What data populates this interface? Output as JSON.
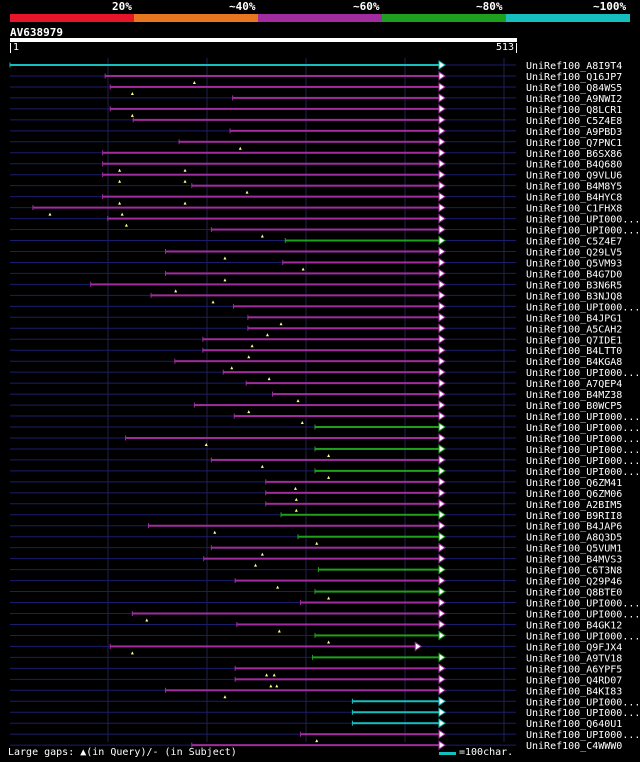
{
  "query": {
    "name": "AV638979",
    "length_start": "1",
    "length_end": "513"
  },
  "legend": {
    "labels": [
      "20%",
      "~40%",
      "~60%",
      "~80%",
      "~100%"
    ],
    "colors": [
      "#e8142a",
      "#e87620",
      "#a02ca0",
      "#1ea01e",
      "#17bebe"
    ]
  },
  "footer": {
    "gaps_note": "Large gaps: ▲(in Query)/- (in Subject)",
    "scale_note": "=100char."
  },
  "chart_data": {
    "type": "alignment",
    "query_length": 513,
    "hits": [
      {
        "label": "UniRef100_A8I9T4",
        "start": 1,
        "end": 513,
        "color": "cyan",
        "arrow": true,
        "marks": []
      },
      {
        "label": "UniRef100_Q16JP7",
        "start": 113,
        "end": 513,
        "color": "purple",
        "arrow": true,
        "marks": [
          218
        ]
      },
      {
        "label": "UniRef100_Q84WS5",
        "start": 119,
        "end": 513,
        "color": "purple",
        "arrow": true,
        "marks": [
          145
        ]
      },
      {
        "label": "UniRef100_A9NWI2",
        "start": 263,
        "end": 513,
        "color": "purple",
        "arrow": true,
        "marks": []
      },
      {
        "label": "UniRef100_Q8LCR1",
        "start": 119,
        "end": 513,
        "color": "purple",
        "arrow": true,
        "marks": [
          145
        ]
      },
      {
        "label": "UniRef100_C5Z4E8",
        "start": 146,
        "end": 513,
        "color": "purple",
        "arrow": true,
        "marks": []
      },
      {
        "label": "UniRef100_A9PBD3",
        "start": 260,
        "end": 513,
        "color": "purple",
        "arrow": true,
        "marks": []
      },
      {
        "label": "UniRef100_Q7PNC1",
        "start": 200,
        "end": 513,
        "color": "purple",
        "arrow": true,
        "marks": [
          272
        ]
      },
      {
        "label": "UniRef100_B6SX86",
        "start": 110,
        "end": 513,
        "color": "purple",
        "arrow": true,
        "marks": []
      },
      {
        "label": "UniRef100_B4Q680",
        "start": 110,
        "end": 513,
        "color": "purple",
        "arrow": true,
        "marks": [
          130,
          207
        ]
      },
      {
        "label": "UniRef100_Q9VLU6",
        "start": 110,
        "end": 513,
        "color": "purple",
        "arrow": true,
        "marks": [
          130,
          207
        ]
      },
      {
        "label": "UniRef100_B4M8Y5",
        "start": 215,
        "end": 513,
        "color": "purple",
        "arrow": true,
        "marks": [
          280
        ]
      },
      {
        "label": "UniRef100_B4HYC8",
        "start": 110,
        "end": 513,
        "color": "purple",
        "arrow": true,
        "marks": [
          130,
          207
        ]
      },
      {
        "label": "UniRef100_C1FHX8",
        "start": 28,
        "end": 513,
        "color": "purple",
        "arrow": true,
        "marks": [
          48,
          133
        ]
      },
      {
        "label": "UniRef100_UPI000...",
        "start": 116,
        "end": 513,
        "color": "purple",
        "arrow": true,
        "marks": [
          138
        ]
      },
      {
        "label": "UniRef100_UPI000...",
        "start": 238,
        "end": 513,
        "color": "purple",
        "arrow": true,
        "marks": [
          298
        ]
      },
      {
        "label": "UniRef100_C5Z4E7",
        "start": 325,
        "end": 513,
        "color": "green",
        "arrow": true,
        "marks": []
      },
      {
        "label": "UniRef100_Q29LV5",
        "start": 184,
        "end": 513,
        "color": "purple",
        "arrow": true,
        "marks": [
          254
        ]
      },
      {
        "label": "UniRef100_Q5VM93",
        "start": 322,
        "end": 513,
        "color": "purple",
        "arrow": true,
        "marks": [
          346
        ]
      },
      {
        "label": "UniRef100_B4G7D0",
        "start": 184,
        "end": 513,
        "color": "purple",
        "arrow": true,
        "marks": [
          254
        ]
      },
      {
        "label": "UniRef100_B3N6R5",
        "start": 96,
        "end": 513,
        "color": "purple",
        "arrow": true,
        "marks": [
          196
        ]
      },
      {
        "label": "UniRef100_B3NJQ8",
        "start": 167,
        "end": 513,
        "color": "purple",
        "arrow": true,
        "marks": [
          240
        ]
      },
      {
        "label": "UniRef100_UPI000...",
        "start": 264,
        "end": 513,
        "color": "purple",
        "arrow": true,
        "marks": []
      },
      {
        "label": "UniRef100_B4JPG1",
        "start": 281,
        "end": 513,
        "color": "purple",
        "arrow": true,
        "marks": [
          320
        ]
      },
      {
        "label": "UniRef100_A5CAH2",
        "start": 281,
        "end": 513,
        "color": "purple",
        "arrow": true,
        "marks": [
          304
        ]
      },
      {
        "label": "UniRef100_Q7IDE1",
        "start": 228,
        "end": 513,
        "color": "purple",
        "arrow": true,
        "marks": [
          286
        ]
      },
      {
        "label": "UniRef100_B4LTT0",
        "start": 228,
        "end": 513,
        "color": "purple",
        "arrow": true,
        "marks": [
          282
        ]
      },
      {
        "label": "UniRef100_B4KGA8",
        "start": 195,
        "end": 513,
        "color": "purple",
        "arrow": true,
        "marks": [
          262
        ]
      },
      {
        "label": "UniRef100_UPI000...",
        "start": 252,
        "end": 513,
        "color": "purple",
        "arrow": true,
        "marks": [
          306
        ]
      },
      {
        "label": "UniRef100_A7QEP4",
        "start": 279,
        "end": 513,
        "color": "purple",
        "arrow": true,
        "marks": []
      },
      {
        "label": "UniRef100_B4MZ38",
        "start": 310,
        "end": 513,
        "color": "purple",
        "arrow": true,
        "marks": [
          340
        ]
      },
      {
        "label": "UniRef100_B0WCP5",
        "start": 218,
        "end": 513,
        "color": "purple",
        "arrow": true,
        "marks": [
          282
        ]
      },
      {
        "label": "UniRef100_UPI000...",
        "start": 265,
        "end": 513,
        "color": "purple",
        "arrow": true,
        "marks": [
          345
        ]
      },
      {
        "label": "UniRef100_UPI000...",
        "start": 360,
        "end": 513,
        "color": "green",
        "arrow": true,
        "marks": []
      },
      {
        "label": "UniRef100_UPI000...",
        "start": 137,
        "end": 513,
        "color": "purple",
        "arrow": true,
        "marks": [
          232
        ]
      },
      {
        "label": "UniRef100_UPI000...",
        "start": 360,
        "end": 513,
        "color": "green",
        "arrow": true,
        "marks": [
          376
        ]
      },
      {
        "label": "UniRef100_UPI000...",
        "start": 238,
        "end": 513,
        "color": "purple",
        "arrow": true,
        "marks": [
          298
        ]
      },
      {
        "label": "UniRef100_UPI000...",
        "start": 360,
        "end": 513,
        "color": "green",
        "arrow": true,
        "marks": [
          376
        ]
      },
      {
        "label": "UniRef100_Q6ZM41",
        "start": 302,
        "end": 513,
        "color": "purple",
        "arrow": true,
        "marks": [
          337
        ]
      },
      {
        "label": "UniRef100_Q6ZM06",
        "start": 302,
        "end": 513,
        "color": "purple",
        "arrow": true,
        "marks": [
          338
        ]
      },
      {
        "label": "UniRef100_A2BIM5",
        "start": 302,
        "end": 513,
        "color": "purple",
        "arrow": true,
        "marks": [
          338
        ]
      },
      {
        "label": "UniRef100_B9RII8",
        "start": 320,
        "end": 513,
        "color": "green",
        "arrow": true,
        "marks": []
      },
      {
        "label": "UniRef100_B4JAP6",
        "start": 164,
        "end": 513,
        "color": "purple",
        "arrow": true,
        "marks": [
          242
        ]
      },
      {
        "label": "UniRef100_A8Q3D5",
        "start": 340,
        "end": 513,
        "color": "green",
        "arrow": true,
        "marks": [
          362
        ]
      },
      {
        "label": "UniRef100_Q5VUM1",
        "start": 238,
        "end": 513,
        "color": "purple",
        "arrow": true,
        "marks": [
          298
        ]
      },
      {
        "label": "UniRef100_B4MVS3",
        "start": 229,
        "end": 513,
        "color": "purple",
        "arrow": true,
        "marks": [
          290
        ]
      },
      {
        "label": "UniRef100_C6T3N8",
        "start": 364,
        "end": 513,
        "color": "green",
        "arrow": true,
        "marks": []
      },
      {
        "label": "UniRef100_Q29P46",
        "start": 266,
        "end": 513,
        "color": "purple",
        "arrow": true,
        "marks": [
          316
        ]
      },
      {
        "label": "UniRef100_Q8BTE0",
        "start": 360,
        "end": 513,
        "color": "green",
        "arrow": true,
        "marks": [
          376
        ]
      },
      {
        "label": "UniRef100_UPI000...",
        "start": 343,
        "end": 513,
        "color": "purple",
        "arrow": true,
        "marks": []
      },
      {
        "label": "UniRef100_UPI000...",
        "start": 145,
        "end": 513,
        "color": "purple",
        "arrow": true,
        "marks": [
          162
        ]
      },
      {
        "label": "UniRef100_B4GK12",
        "start": 268,
        "end": 513,
        "color": "purple",
        "arrow": true,
        "marks": [
          318
        ]
      },
      {
        "label": "UniRef100_UPI000...",
        "start": 360,
        "end": 513,
        "color": "green",
        "arrow": true,
        "marks": [
          376
        ]
      },
      {
        "label": "UniRef100_Q9FJX4",
        "start": 119,
        "end": 485,
        "color": "purple",
        "arrow": true,
        "marks": [
          145
        ]
      },
      {
        "label": "UniRef100_A9TV18",
        "start": 357,
        "end": 513,
        "color": "green",
        "arrow": true,
        "marks": []
      },
      {
        "label": "UniRef100_A6YPF5",
        "start": 266,
        "end": 513,
        "color": "purple",
        "arrow": true,
        "marks": [
          303,
          312
        ]
      },
      {
        "label": "UniRef100_Q4RD07",
        "start": 266,
        "end": 513,
        "color": "purple",
        "arrow": true,
        "marks": [
          308,
          315
        ]
      },
      {
        "label": "UniRef100_B4KI83",
        "start": 184,
        "end": 513,
        "color": "purple",
        "arrow": true,
        "marks": [
          254
        ]
      },
      {
        "label": "UniRef100_UPI000...",
        "start": 404,
        "end": 513,
        "color": "cyan",
        "arrow": true,
        "marks": []
      },
      {
        "label": "UniRef100_UPI000...",
        "start": 404,
        "end": 513,
        "color": "cyan",
        "arrow": true,
        "marks": []
      },
      {
        "label": "UniRef100_Q640U1",
        "start": 404,
        "end": 513,
        "color": "cyan",
        "arrow": true,
        "marks": []
      },
      {
        "label": "UniRef100_UPI000...",
        "start": 343,
        "end": 513,
        "color": "purple",
        "arrow": true,
        "marks": [
          362
        ]
      },
      {
        "label": "UniRef100_C4WWW0",
        "start": 215,
        "end": 513,
        "color": "purple",
        "arrow": true,
        "marks": []
      }
    ]
  },
  "series_colors": {
    "purple": "#a02ca0",
    "green": "#1ea01e",
    "cyan": "#17bebe",
    "backbone": "#1c1c6e",
    "grid": "#22224a",
    "gap": "#000000",
    "mark": "#ffff88",
    "arrow_fill": "#ffffff"
  }
}
